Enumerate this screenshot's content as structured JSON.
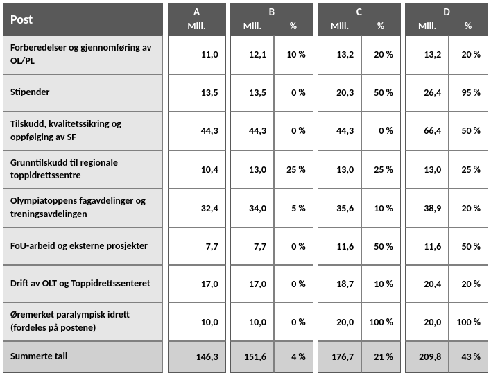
{
  "header": {
    "post": "Post",
    "groups": [
      {
        "letter": "A",
        "subs": [
          "Mill."
        ]
      },
      {
        "letter": "B",
        "subs": [
          "Mill.",
          "%"
        ]
      },
      {
        "letter": "C",
        "subs": [
          "Mill.",
          "%"
        ]
      },
      {
        "letter": "D",
        "subs": [
          "Mill.",
          "%"
        ]
      }
    ]
  },
  "rows": [
    {
      "label": "Forberedelser og gjennomføring av OL/PL",
      "a": "11,0",
      "bM": "12,1",
      "bP": "10 %",
      "cM": "13,2",
      "cP": "20 %",
      "dM": "13,2",
      "dP": "20 %"
    },
    {
      "label": "Stipender",
      "a": "13,5",
      "bM": "13,5",
      "bP": "0 %",
      "cM": "20,3",
      "cP": "50 %",
      "dM": "26,4",
      "dP": "95 %"
    },
    {
      "label": "Tilskudd, kvalitetssikring og oppfølging av SF",
      "a": "44,3",
      "bM": "44,3",
      "bP": "0 %",
      "cM": "44,3",
      "cP": "0 %",
      "dM": "66,4",
      "dP": "50 %"
    },
    {
      "label": "Grunntilskudd til regionale toppidrettssentre",
      "a": "10,4",
      "bM": "13,0",
      "bP": "25 %",
      "cM": "13,0",
      "cP": "25 %",
      "dM": "13,0",
      "dP": "25 %"
    },
    {
      "label": "Olympiatoppens fagavdelinger og treningsavdelingen",
      "a": "32,4",
      "bM": "34,0",
      "bP": "5 %",
      "cM": "35,6",
      "cP": "10 %",
      "dM": "38,9",
      "dP": "20 %"
    },
    {
      "label": "FoU-arbeid og eksterne prosjekter",
      "a": "7,7",
      "bM": "7,7",
      "bP": "0 %",
      "cM": "11,6",
      "cP": "50 %",
      "dM": "11,6",
      "dP": "50 %"
    },
    {
      "label": "Drift av OLT og Toppidrettssenteret",
      "a": "17,0",
      "bM": "17,0",
      "bP": "0 %",
      "cM": "18,7",
      "cP": "10 %",
      "dM": "20,4",
      "dP": "20 %"
    },
    {
      "label": "Øremerket paralympisk idrett (fordeles på  postene)",
      "a": "10,0",
      "bM": "10,0",
      "bP": "0 %",
      "cM": "20,0",
      "cP": "100 %",
      "dM": "20,0",
      "dP": "100 %"
    }
  ],
  "sum": {
    "label": "Summerte tall",
    "a": "146,3",
    "bM": "151,6",
    "bP": "4 %",
    "cM": "176,7",
    "cP": "21 %",
    "dM": "209,8",
    "dP": "43 %"
  }
}
